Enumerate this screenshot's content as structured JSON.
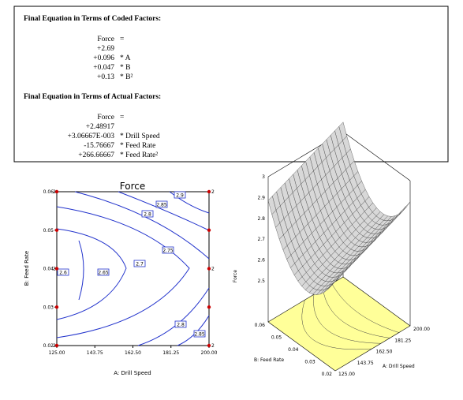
{
  "coded": {
    "title": "Final Equation in Terms of Coded Factors:",
    "lhs": "Force",
    "eq": "=",
    "intercept": "+2.69",
    "terms": [
      {
        "coef": "+0.096",
        "factor": "* A"
      },
      {
        "coef": "+0.047",
        "factor": "* B"
      },
      {
        "coef": "+0.13",
        "factor": "* B²"
      }
    ]
  },
  "actual": {
    "title": "Final Equation in Terms of Actual Factors:",
    "lhs": "Force",
    "eq": "=",
    "intercept": "+2.48917",
    "terms": [
      {
        "coef": "+3.06667E-003",
        "factor": "* Drill Speed"
      },
      {
        "coef": "-15.76667",
        "factor": "* Feed Rate"
      },
      {
        "coef": "+266.66667",
        "factor": "* Feed Rate²"
      }
    ]
  },
  "contour": {
    "title": "Force",
    "x_label": "A: Drill Speed",
    "y_label": "B: Feed Rate",
    "xticks": [
      "125.00",
      "143.75",
      "162.50",
      "181.25",
      "200.00"
    ],
    "yticks": [
      "0.02",
      "0.03",
      "0.04",
      "0.05",
      "0.06"
    ],
    "level_labels": [
      "2.9",
      "2.85",
      "2.8",
      "2.75",
      "2.7",
      "2.65",
      "2.6",
      "2.8",
      "2.85"
    ],
    "replicates": "2"
  },
  "surface": {
    "z_label": "Force",
    "zticks": [
      "2.5",
      "2.6",
      "2.7",
      "2.8",
      "2.9",
      "3"
    ],
    "feed_label": "B: Feed Rate",
    "feed_ticks": [
      "0.02",
      "0.03",
      "0.04",
      "0.05",
      "0.06"
    ],
    "speed_label": "A: Drill Speed",
    "speed_ticks": [
      "125.00",
      "143.75",
      "162.50",
      "181.25",
      "200.00"
    ]
  }
}
